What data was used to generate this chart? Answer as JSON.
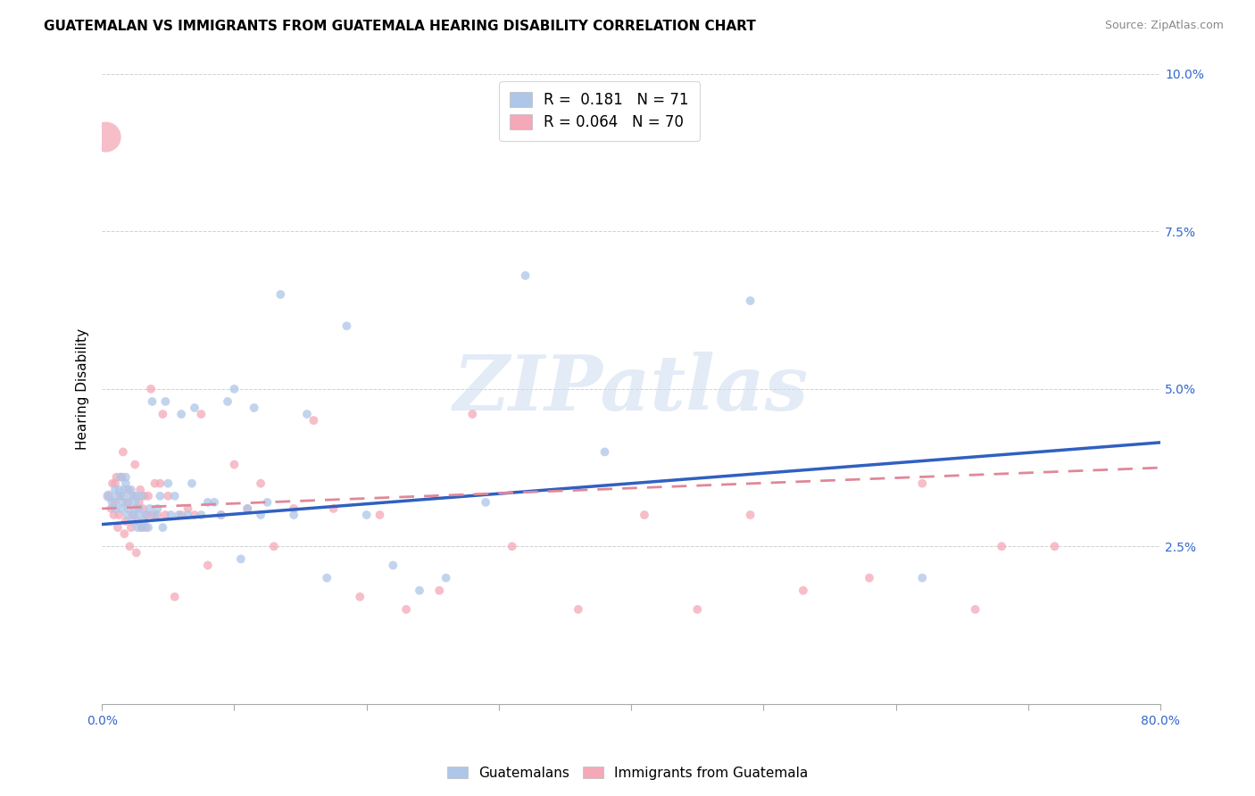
{
  "title": "GUATEMALAN VS IMMIGRANTS FROM GUATEMALA HEARING DISABILITY CORRELATION CHART",
  "source": "Source: ZipAtlas.com",
  "ylabel": "Hearing Disability",
  "xlim": [
    0.0,
    0.8
  ],
  "ylim": [
    0.0,
    0.1
  ],
  "color_blue": "#aec6e8",
  "color_pink": "#f4a8b8",
  "color_blue_line": "#3060c0",
  "color_pink_line": "#e08898",
  "watermark": "ZIPatlas",
  "blue_scatter_x": [
    0.005,
    0.008,
    0.01,
    0.01,
    0.012,
    0.013,
    0.014,
    0.015,
    0.015,
    0.016,
    0.017,
    0.018,
    0.018,
    0.019,
    0.02,
    0.02,
    0.022,
    0.022,
    0.023,
    0.024,
    0.025,
    0.025,
    0.026,
    0.027,
    0.028,
    0.028,
    0.03,
    0.03,
    0.032,
    0.033,
    0.035,
    0.036,
    0.038,
    0.04,
    0.042,
    0.044,
    0.046,
    0.048,
    0.05,
    0.052,
    0.055,
    0.058,
    0.06,
    0.065,
    0.068,
    0.07,
    0.075,
    0.08,
    0.085,
    0.09,
    0.095,
    0.1,
    0.105,
    0.11,
    0.115,
    0.12,
    0.125,
    0.135,
    0.145,
    0.155,
    0.17,
    0.185,
    0.2,
    0.22,
    0.24,
    0.26,
    0.29,
    0.32,
    0.38,
    0.49,
    0.62
  ],
  "blue_scatter_y": [
    0.033,
    0.032,
    0.034,
    0.031,
    0.033,
    0.034,
    0.036,
    0.031,
    0.032,
    0.033,
    0.034,
    0.035,
    0.036,
    0.03,
    0.031,
    0.032,
    0.033,
    0.034,
    0.029,
    0.03,
    0.031,
    0.032,
    0.033,
    0.028,
    0.03,
    0.031,
    0.028,
    0.033,
    0.029,
    0.03,
    0.028,
    0.031,
    0.048,
    0.03,
    0.031,
    0.033,
    0.028,
    0.048,
    0.035,
    0.03,
    0.033,
    0.03,
    0.046,
    0.03,
    0.035,
    0.047,
    0.03,
    0.032,
    0.032,
    0.03,
    0.048,
    0.05,
    0.023,
    0.031,
    0.047,
    0.03,
    0.032,
    0.065,
    0.03,
    0.046,
    0.02,
    0.06,
    0.03,
    0.022,
    0.018,
    0.02,
    0.032,
    0.068,
    0.04,
    0.064,
    0.02
  ],
  "blue_scatter_size": [
    80,
    60,
    50,
    50,
    50,
    50,
    50,
    50,
    50,
    50,
    50,
    50,
    50,
    50,
    50,
    50,
    50,
    50,
    50,
    50,
    50,
    50,
    50,
    50,
    50,
    50,
    50,
    50,
    50,
    50,
    50,
    50,
    50,
    50,
    50,
    50,
    50,
    50,
    50,
    50,
    50,
    50,
    50,
    50,
    50,
    50,
    50,
    50,
    50,
    50,
    50,
    50,
    50,
    50,
    50,
    50,
    50,
    50,
    50,
    50,
    50,
    50,
    50,
    50,
    50,
    50,
    50,
    50,
    50,
    50,
    50
  ],
  "pink_scatter_x": [
    0.003,
    0.005,
    0.007,
    0.008,
    0.009,
    0.01,
    0.01,
    0.011,
    0.012,
    0.013,
    0.014,
    0.015,
    0.016,
    0.017,
    0.018,
    0.019,
    0.02,
    0.021,
    0.022,
    0.023,
    0.024,
    0.025,
    0.026,
    0.027,
    0.028,
    0.029,
    0.03,
    0.031,
    0.032,
    0.033,
    0.034,
    0.035,
    0.037,
    0.038,
    0.04,
    0.042,
    0.044,
    0.046,
    0.048,
    0.05,
    0.055,
    0.06,
    0.065,
    0.07,
    0.075,
    0.08,
    0.09,
    0.1,
    0.11,
    0.12,
    0.13,
    0.145,
    0.16,
    0.175,
    0.195,
    0.21,
    0.23,
    0.255,
    0.28,
    0.31,
    0.36,
    0.41,
    0.45,
    0.49,
    0.53,
    0.58,
    0.62,
    0.66,
    0.68,
    0.72
  ],
  "pink_scatter_y": [
    0.09,
    0.033,
    0.031,
    0.035,
    0.03,
    0.032,
    0.035,
    0.036,
    0.028,
    0.03,
    0.033,
    0.036,
    0.04,
    0.027,
    0.029,
    0.032,
    0.034,
    0.025,
    0.028,
    0.03,
    0.033,
    0.038,
    0.024,
    0.029,
    0.032,
    0.034,
    0.028,
    0.031,
    0.033,
    0.028,
    0.03,
    0.033,
    0.05,
    0.03,
    0.035,
    0.03,
    0.035,
    0.046,
    0.03,
    0.033,
    0.017,
    0.03,
    0.031,
    0.03,
    0.046,
    0.022,
    0.03,
    0.038,
    0.031,
    0.035,
    0.025,
    0.031,
    0.045,
    0.031,
    0.017,
    0.03,
    0.015,
    0.018,
    0.046,
    0.025,
    0.015,
    0.03,
    0.015,
    0.03,
    0.018,
    0.02,
    0.035,
    0.015,
    0.025,
    0.025
  ],
  "pink_scatter_size": [
    600,
    50,
    50,
    50,
    50,
    50,
    50,
    50,
    50,
    50,
    50,
    50,
    50,
    50,
    50,
    50,
    50,
    50,
    50,
    50,
    50,
    50,
    50,
    50,
    50,
    50,
    50,
    50,
    50,
    50,
    50,
    50,
    50,
    50,
    50,
    50,
    50,
    50,
    50,
    50,
    50,
    50,
    50,
    50,
    50,
    50,
    50,
    50,
    50,
    50,
    50,
    50,
    50,
    50,
    50,
    50,
    50,
    50,
    50,
    50,
    50,
    50,
    50,
    50,
    50,
    50,
    50,
    50,
    50,
    50
  ],
  "blue_line_x": [
    0.0,
    0.8
  ],
  "blue_line_y": [
    0.0285,
    0.0415
  ],
  "pink_line_x": [
    0.0,
    0.8
  ],
  "pink_line_y": [
    0.031,
    0.0375
  ],
  "background_color": "#ffffff",
  "grid_color": "#cccccc",
  "title_fontsize": 11,
  "tick_color": "#3366cc"
}
